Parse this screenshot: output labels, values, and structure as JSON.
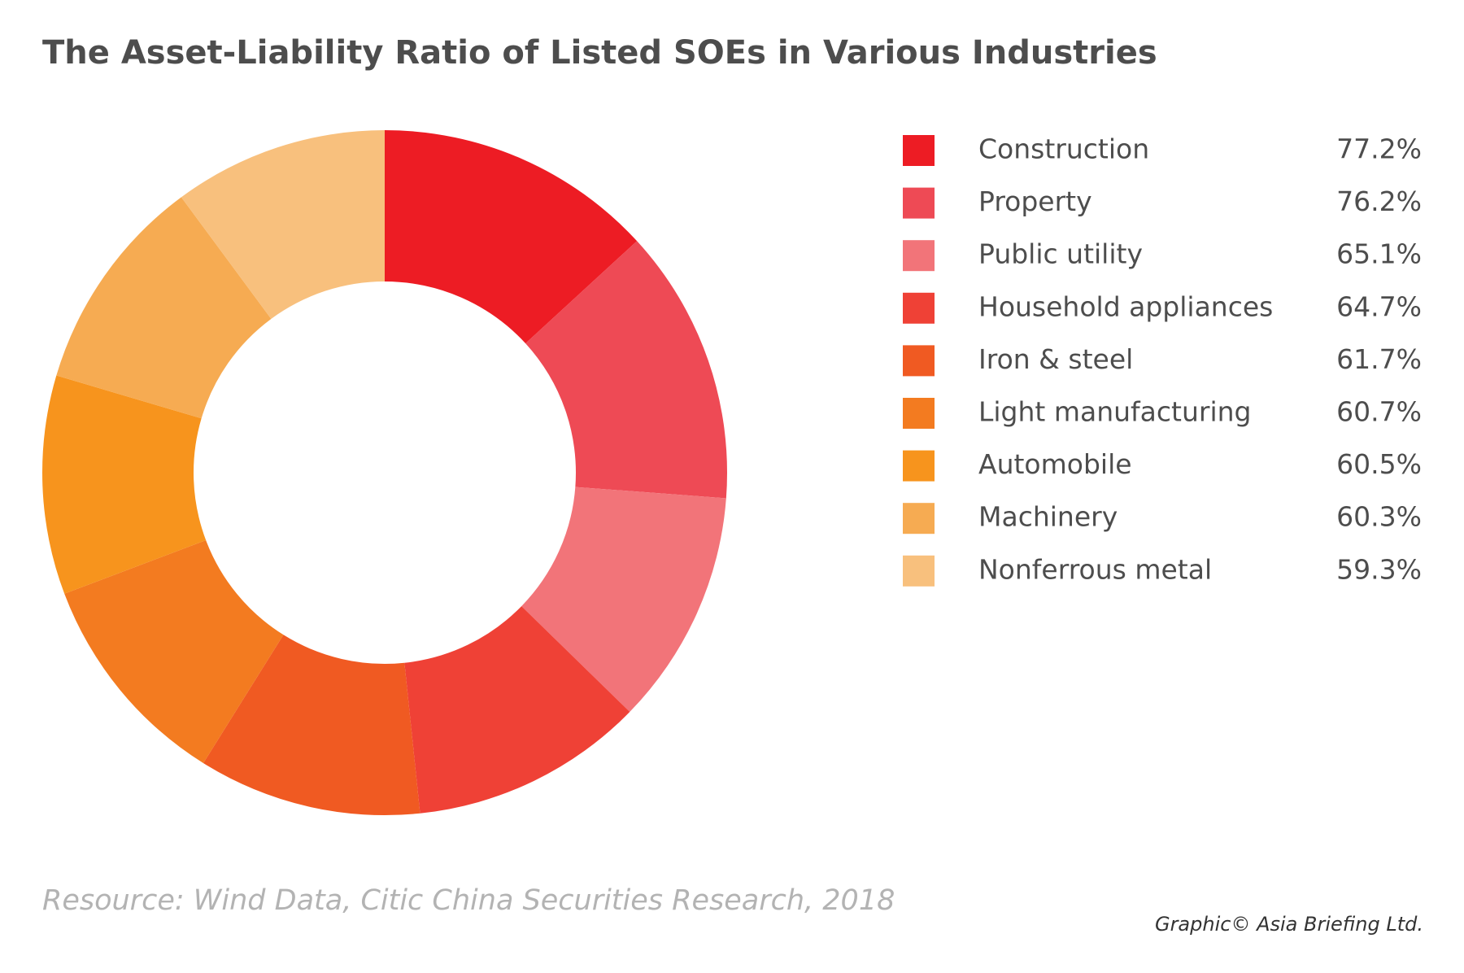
{
  "chart_data": {
    "type": "pie",
    "title": "The Asset-Liability Ratio of Listed SOEs in Various Industries",
    "categories": [
      "Construction",
      "Property",
      "Public utility",
      "Household appliances",
      "Iron & steel",
      "Light manufacturing",
      "Automobile",
      "Machinery",
      "Nonferrous metal"
    ],
    "values": [
      77.2,
      76.2,
      65.1,
      64.7,
      61.7,
      60.7,
      60.5,
      60.3,
      59.3
    ],
    "value_labels": [
      "77.2%",
      "76.2%",
      "65.1%",
      "64.7%",
      "61.7%",
      "60.7%",
      "60.5%",
      "60.3%",
      "59.3%"
    ],
    "colors": [
      "#ed1c24",
      "#ee4a55",
      "#f27479",
      "#ef4136",
      "#f05a22",
      "#f37b20",
      "#f7941d",
      "#f6ab52",
      "#f8c07d"
    ],
    "source": "Resource: Wind Data, Citic China Securities Research, 2018",
    "credit": "Graphic© Asia Briefing Ltd."
  }
}
